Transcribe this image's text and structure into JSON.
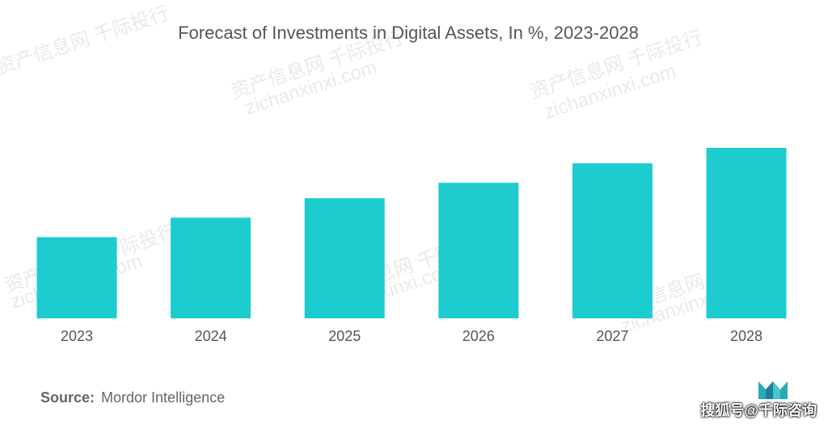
{
  "title": "Forecast of Investments in Digital Assets, In %, 2023-2028",
  "source": {
    "label": "Source:",
    "value": "Mordor Intelligence"
  },
  "watermark_bottom": "搜狐号@千际咨询",
  "watermarks": [
    "资产信息网 千际投行",
    "zichanxinxi.com"
  ],
  "colors": {
    "bar": "#1ccccf",
    "title": "#555555",
    "tick": "#555555"
  },
  "chart_data": {
    "type": "bar",
    "title": "Forecast of Investments in Digital Assets, In %, 2023-2028",
    "categories": [
      "2023",
      "2024",
      "2025",
      "2026",
      "2027",
      "2028"
    ],
    "values": [
      100,
      124,
      148,
      167,
      191,
      210
    ],
    "ylim": [
      0,
      210
    ],
    "grid": false,
    "legend": "none"
  }
}
